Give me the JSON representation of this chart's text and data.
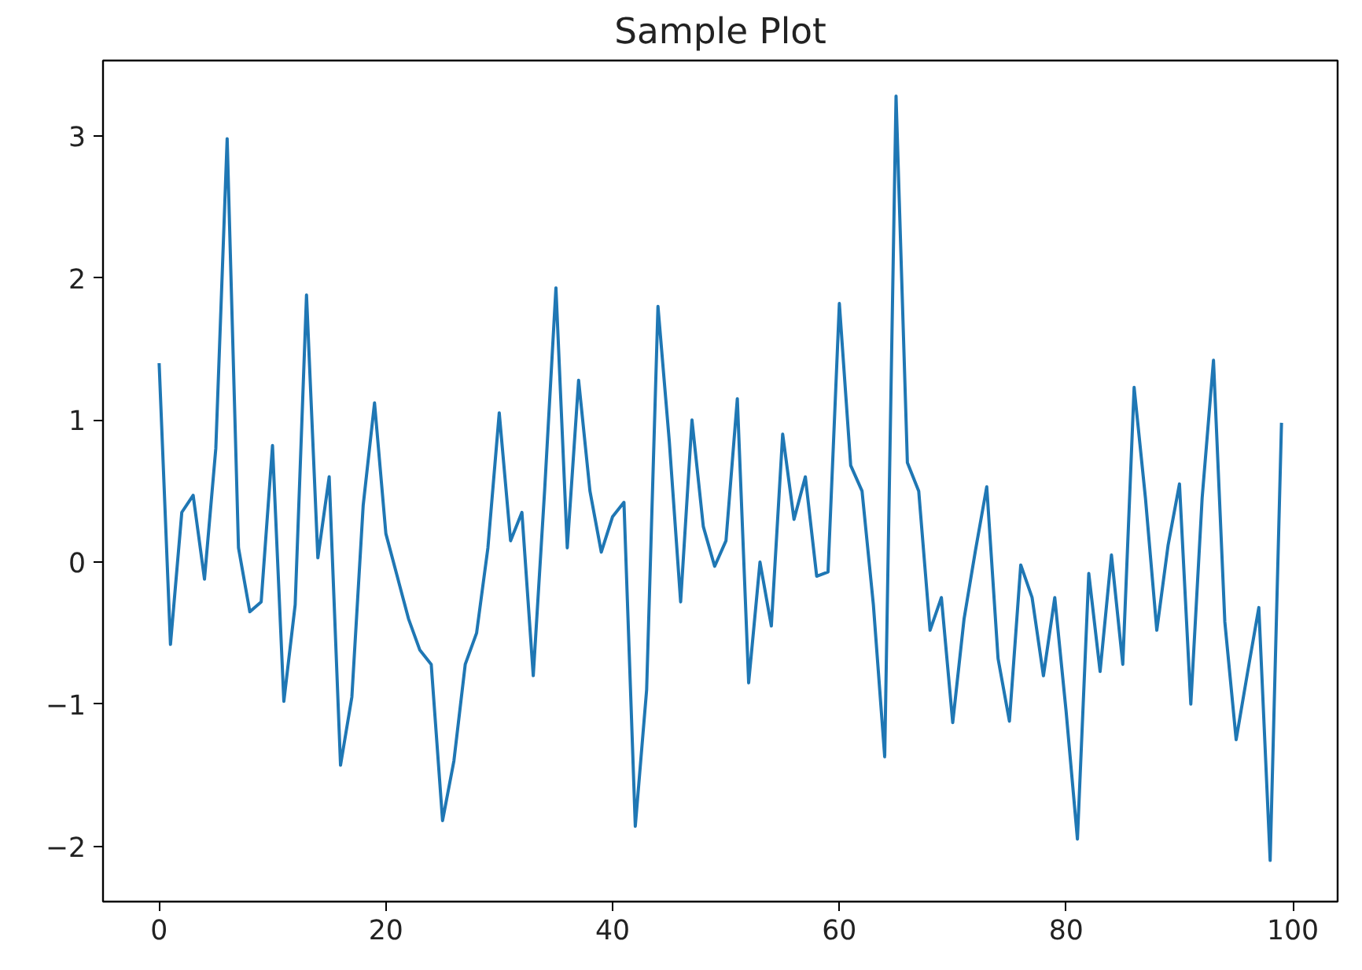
{
  "chart_data": {
    "type": "line",
    "title": "Sample Plot",
    "x": [
      0,
      1,
      2,
      3,
      4,
      5,
      6,
      7,
      8,
      9,
      10,
      11,
      12,
      13,
      14,
      15,
      16,
      17,
      18,
      19,
      20,
      21,
      22,
      23,
      24,
      25,
      26,
      27,
      28,
      29,
      30,
      31,
      32,
      33,
      34,
      35,
      36,
      37,
      38,
      39,
      40,
      41,
      42,
      43,
      44,
      45,
      46,
      47,
      48,
      49,
      50,
      51,
      52,
      53,
      54,
      55,
      56,
      57,
      58,
      59,
      60,
      61,
      62,
      63,
      64,
      65,
      66,
      67,
      68,
      69,
      70,
      71,
      72,
      73,
      74,
      75,
      76,
      77,
      78,
      79,
      80,
      81,
      82,
      83,
      84,
      85,
      86,
      87,
      88,
      89,
      90,
      91,
      92,
      93,
      94,
      95,
      96,
      97,
      98,
      99
    ],
    "series": [
      {
        "color": "#1f77b4",
        "values": [
          1.4,
          -0.58,
          0.35,
          0.47,
          -0.12,
          0.8,
          2.98,
          0.1,
          -0.35,
          -0.28,
          0.82,
          -0.98,
          -0.3,
          1.88,
          0.03,
          0.6,
          -1.43,
          -0.95,
          0.4,
          1.12,
          0.2,
          -0.1,
          -0.4,
          -0.62,
          -0.72,
          -1.82,
          -1.4,
          -0.72,
          -0.5,
          0.1,
          1.05,
          0.15,
          0.35,
          -0.8,
          0.5,
          1.93,
          0.1,
          1.28,
          0.5,
          0.07,
          0.32,
          0.42,
          -1.86,
          -0.9,
          1.8,
          0.85,
          -0.28,
          1.0,
          0.25,
          -0.03,
          0.15,
          1.15,
          -0.85,
          0.0,
          -0.45,
          0.9,
          0.3,
          0.6,
          -0.1,
          -0.07,
          1.82,
          0.68,
          0.5,
          -0.3,
          -1.37,
          3.28,
          0.7,
          0.5,
          -0.48,
          -0.25,
          -1.13,
          -0.4,
          0.08,
          0.53,
          -0.68,
          -1.12,
          -0.02,
          -0.25,
          -0.8,
          -0.25,
          -1.05,
          -1.95,
          -0.08,
          -0.77,
          0.05,
          -0.72,
          1.23,
          0.45,
          -0.48,
          0.12,
          0.55,
          -1.0,
          0.45,
          1.42,
          -0.42,
          -1.25,
          -0.78,
          -0.32,
          -2.1,
          0.98
        ]
      }
    ],
    "xlim": [
      -4.95,
      103.95
    ],
    "ylim": [
      -2.39,
      3.53
    ],
    "xticks": [
      0,
      20,
      40,
      60,
      80,
      100
    ],
    "yticks": [
      -2,
      -1,
      0,
      1,
      2,
      3
    ],
    "grid": false,
    "marker": "none",
    "line_style": "solid"
  }
}
